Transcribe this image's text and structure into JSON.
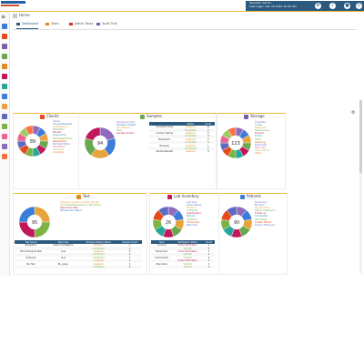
{
  "app": {
    "logo_label": "",
    "user_name": "Operator Admin",
    "last_login": "Last Login: Dec 18 2019 10:42 AM"
  },
  "header_icons": [
    "gear-icon",
    "bell-icon",
    "user-icon",
    "power-icon"
  ],
  "breadcrumb": {
    "home": "Home"
  },
  "tabs": [
    {
      "label": "Dashboard",
      "icon": "dashboard-icon",
      "color": "#2c5a7e"
    },
    {
      "label": "Tasks",
      "icon": "tasks-icon",
      "color": "#e08a1e"
    },
    {
      "label": "Admin Tasks",
      "icon": "admin-tasks-icon",
      "color": "#d32f2f"
    },
    {
      "label": "Audit Trail",
      "icon": "audit-icon",
      "color": "#7b5ea7"
    }
  ],
  "colors": {
    "header": "#2c5a7e",
    "accent": "#f0b63a"
  },
  "cards": {
    "clients": {
      "title": "Clients",
      "center": "89",
      "legend": [
        "Active",
        "Closed/Obsolete",
        "Qualification",
        "Validation",
        "Review",
        "Suspended",
        "New Registration",
        "Registration",
        "Not Submitted",
        "Submitted",
        "Assigned",
        "Accepted"
      ],
      "legend_colors": [
        "#8e6bbf",
        "#3b7dd8",
        "#e8a33b",
        "#6aa84f",
        "#c2185b",
        "#26a69a",
        "#7cb342",
        "#e64a19",
        "#5c6bc0",
        "#f06292",
        "#9ccc65",
        "#ff7043"
      ]
    },
    "samples": {
      "title": "Samples",
      "center": "94",
      "legend": [
        "Sample Arrived",
        "Sample Initiated",
        "Sent Reject",
        "Sent",
        "Sample Closed"
      ],
      "legend_colors": [
        "#8e6bbf",
        "#3b7dd8",
        "#e8a33b",
        "#6aa84f",
        "#c2185b"
      ],
      "table": {
        "headers": [
          "",
          "Status",
          "Count"
        ],
        "rows": [
          [
            "Compliant Case",
            "Assigned",
            "12"
          ],
          [
            "",
            "Completed",
            "4"
          ],
          [
            "Analytic Testing",
            "Assigned",
            "6"
          ],
          [
            "",
            "Completed",
            "3"
          ],
          [
            "Bioanalytic",
            "Assigned",
            "2"
          ],
          [
            "",
            "Completed",
            "5"
          ],
          [
            "Bioassay",
            "Assigned",
            "1"
          ],
          [
            "",
            "Completed",
            "7"
          ],
          [
            "Sample Receipt",
            "Assigned",
            "9"
          ]
        ]
      }
    },
    "storage": {
      "title": "Storage",
      "center": "123",
      "legend": [
        "Available",
        "In Use",
        "Reserved",
        "Maintenance",
        "Expired",
        "Empty",
        "Filled",
        "Cleaning",
        "Discarded",
        "Returned",
        "Quarantined",
        "Other"
      ],
      "legend_colors": [
        "#8e6bbf",
        "#3b7dd8",
        "#e8a33b",
        "#6aa84f",
        "#c2185b",
        "#26a69a",
        "#7cb342",
        "#e64a19",
        "#5c6bc0",
        "#f06292",
        "#9ccc65",
        "#ff7043"
      ]
    },
    "test": {
      "title": "Test",
      "center": "95",
      "legend": [
        "Assigned, Creation/Under Review",
        "Completed/Reviewed in Test_Batch",
        "Approved, Pass",
        "Review Fail, Reject"
      ],
      "legend_colors": [
        "#e8a33b",
        "#7cb342",
        "#c2185b",
        "#3b7dd8"
      ],
      "table": {
        "headers": [
          "Test Group",
          "Test Code",
          "Samples Testing Status",
          "Sample Count"
        ],
        "rows": [
          [
            "Navigation",
            "Initial Investigation",
            "Assigned",
            "4"
          ],
          [
            "",
            "",
            "Completed",
            "2"
          ],
          [
            "Microbiological Test",
            "Loss",
            "Assigned",
            "5"
          ],
          [
            "",
            "",
            "Completed",
            "3"
          ],
          [
            "Endpoint",
            "Loss",
            "Completed",
            "2"
          ],
          [
            "",
            "",
            "Assigned",
            "1"
          ],
          [
            "Bio Test",
            "BL_Assay",
            "Assigned",
            "2"
          ],
          [
            "",
            "",
            "Completed",
            "6"
          ]
        ]
      }
    },
    "lab_inventory": {
      "title": "Lab Inventory",
      "center": "26",
      "legend": [
        "Lab Area",
        "Active Items",
        "Expired",
        "In Transit",
        "Qualification",
        "Retired",
        "Depleted",
        "Consumed",
        "Returned"
      ],
      "legend_colors": [
        "#8e6bbf",
        "#3b7dd8",
        "#e8a33b",
        "#6aa84f",
        "#c2185b",
        "#26a69a",
        "#7cb342",
        "#e64a19",
        "#5c6bc0"
      ],
      "table": {
        "headers": [
          "Type",
          "Verification Status",
          "Count"
        ],
        "rows": [
          [
            "Columns",
            "Under Verification",
            "2"
          ],
          [
            "",
            "Verified",
            "5"
          ],
          [
            "Equipment",
            "Under Verification",
            "3"
          ],
          [
            "",
            "Verified",
            "4"
          ],
          [
            "Instruments",
            "Verified",
            "6"
          ],
          [
            "",
            "Under Verification",
            "1"
          ],
          [
            "Standards",
            "Verified",
            "3"
          ],
          [
            "",
            "Verified",
            "2"
          ]
        ]
      }
    },
    "patients": {
      "title": "Patients",
      "center": "90",
      "legend": [
        "Screening",
        "Enrolled",
        "Randomized",
        "Active Treatment",
        "Follow-up",
        "Completed",
        "Withdrawn",
        "Screen Failure",
        "Lost to Follow-up"
      ],
      "legend_colors": [
        "#8e6bbf",
        "#3b7dd8",
        "#e8a33b",
        "#6aa84f",
        "#c2185b",
        "#26a69a",
        "#7cb342",
        "#e64a19",
        "#5c6bc0"
      ]
    }
  }
}
